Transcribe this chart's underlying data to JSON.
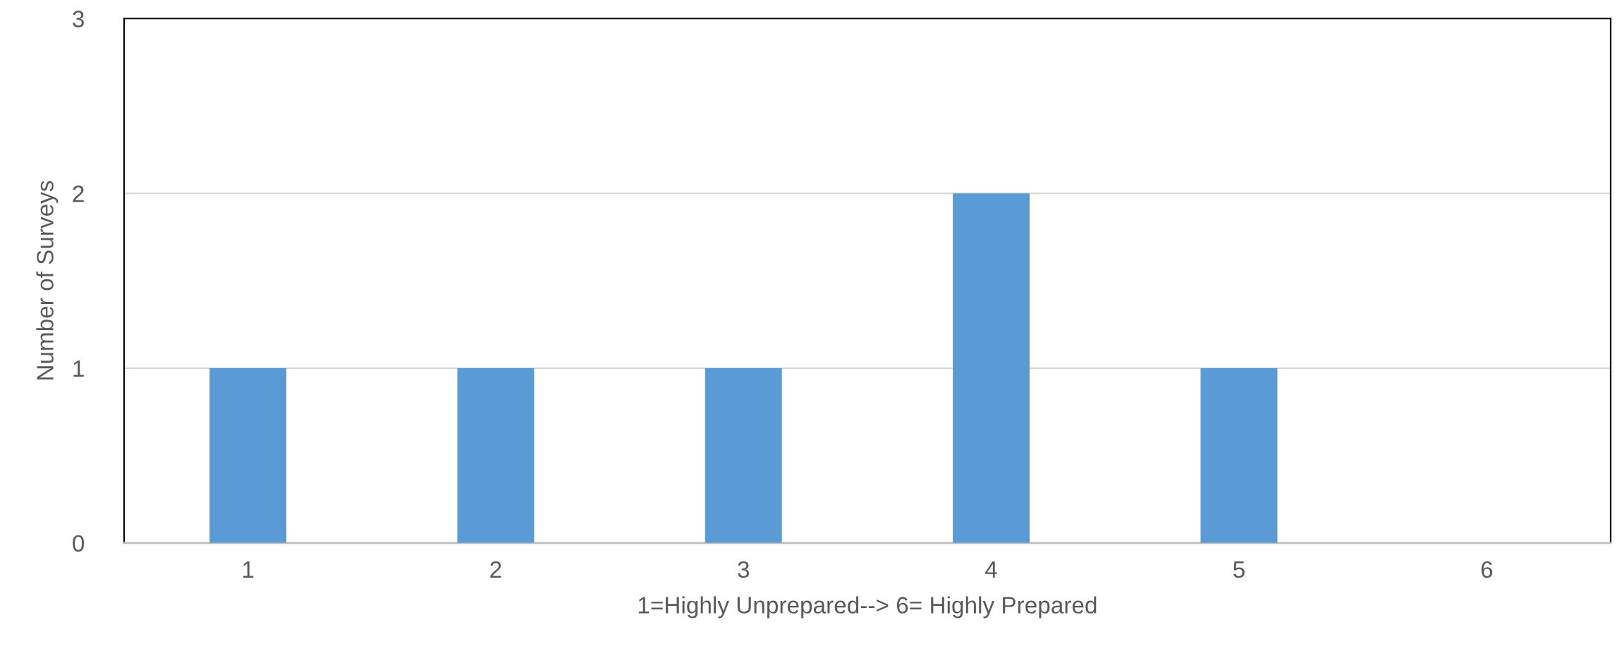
{
  "chart_data": {
    "type": "bar",
    "xlabel": "1=Highly Unprepared--> 6= Highly Prepared",
    "ylabel": "Number of Surveys",
    "categories": [
      "1",
      "2",
      "3",
      "4",
      "5",
      "6"
    ],
    "values": [
      1,
      1,
      1,
      2,
      1,
      0
    ],
    "color": "#5b9bd5",
    "ylim": [
      0,
      3
    ],
    "yticks": [
      0,
      1,
      2,
      3
    ],
    "grid": "y"
  }
}
